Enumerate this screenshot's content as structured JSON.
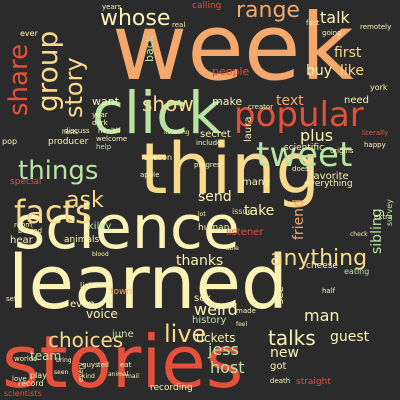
{
  "words": [
    {
      "text": "week",
      "color": "#f5a86b"
    },
    {
      "text": "stories",
      "color": "#e5503b"
    },
    {
      "text": "learned",
      "color": "#fbf3b5"
    },
    {
      "text": "science",
      "color": "#fbf3b5"
    },
    {
      "text": "thing",
      "color": "#f9d98c"
    },
    {
      "text": "click",
      "color": "#b7e3a3"
    },
    {
      "text": "popular",
      "color": "#e5503b"
    },
    {
      "text": "tweet",
      "color": "#b7e3a3"
    },
    {
      "text": "facts",
      "color": "#f9d98c"
    },
    {
      "text": "things",
      "color": "#b7e3a3"
    },
    {
      "text": "share",
      "color": "#e5503b"
    },
    {
      "text": "group",
      "color": "#f9d98c"
    },
    {
      "text": "story",
      "color": "#f9d98c"
    },
    {
      "text": "whose",
      "color": "#fbf3b5"
    },
    {
      "text": "range",
      "color": "#f5a86b"
    },
    {
      "text": "show",
      "color": "#f9d98c"
    },
    {
      "text": "ask",
      "color": "#f9d98c"
    },
    {
      "text": "anything",
      "color": "#f9d98c"
    },
    {
      "text": "choices",
      "color": "#f9d98c"
    },
    {
      "text": "live",
      "color": "#f9d98c"
    },
    {
      "text": "talks",
      "color": "#fbf3b5"
    },
    {
      "text": "talk",
      "color": "#fbf3b5"
    },
    {
      "text": "first",
      "color": "#f9d98c"
    },
    {
      "text": "like",
      "color": "#f9d98c"
    },
    {
      "text": "plus",
      "color": "#fbf3b5"
    },
    {
      "text": "buy",
      "color": "#fbf3b5"
    },
    {
      "text": "text",
      "color": "#f5a86b"
    },
    {
      "text": "friend",
      "color": "#f5a86b"
    },
    {
      "text": "sibling",
      "color": "#b7e3a3"
    },
    {
      "text": "thanks",
      "color": "#fbf3b5"
    },
    {
      "text": "weird",
      "color": "#fbf3b5"
    },
    {
      "text": "jess",
      "color": "#b7e3a3"
    },
    {
      "text": "host",
      "color": "#b7e3a3"
    },
    {
      "text": "man",
      "color": "#fbf3b5"
    },
    {
      "text": "guest",
      "color": "#fbf3b5"
    },
    {
      "text": "send",
      "color": "#fbf3b5"
    },
    {
      "text": "take",
      "color": "#fbf3b5"
    },
    {
      "text": "new",
      "color": "#fbf3b5"
    },
    {
      "text": "got",
      "color": "#fbf3b5"
    },
    {
      "text": "team",
      "color": "#b7e3a3"
    },
    {
      "text": "voice",
      "color": "#fbf3b5"
    },
    {
      "text": "tickets",
      "color": "#fbf3b5"
    },
    {
      "text": "want",
      "color": "#fbf3b5"
    },
    {
      "text": "make",
      "color": "#fbf3b5"
    },
    {
      "text": "people",
      "color": "#e5503b"
    },
    {
      "text": "secret",
      "color": "#fbf3b5"
    },
    {
      "text": "laura",
      "color": "#fbf3b5"
    },
    {
      "text": "favorite",
      "color": "#fbf3b5"
    },
    {
      "text": "many",
      "color": "#fbf3b5"
    },
    {
      "text": "hear",
      "color": "#fbf3b5"
    },
    {
      "text": "listener",
      "color": "#e5503b"
    },
    {
      "text": "see",
      "color": "#fbf3b5"
    },
    {
      "text": "sex",
      "color": "#fbf3b5"
    },
    {
      "text": "history",
      "color": "#b7e3a3"
    },
    {
      "text": "even",
      "color": "#fbf3b5"
    },
    {
      "text": "june",
      "color": "#b7e3a3"
    },
    {
      "text": "need",
      "color": "#fbf3b5"
    },
    {
      "text": "back",
      "color": "#b7e3a3"
    },
    {
      "text": "kiley",
      "color": "#b7e3a3"
    },
    {
      "text": "scientific",
      "color": "#fbf3b5"
    },
    {
      "text": "human",
      "color": "#fbf3b5"
    },
    {
      "text": "cheese",
      "color": "#fbf3b5"
    },
    {
      "text": "everything",
      "color": "#fbf3b5"
    },
    {
      "text": "special",
      "color": "#e5503b"
    },
    {
      "text": "animals",
      "color": "#fbf3b5"
    },
    {
      "text": "town",
      "color": "#f5a86b"
    },
    {
      "text": "eating",
      "color": "#b7e3a3"
    },
    {
      "text": "straight",
      "color": "#e5503b"
    },
    {
      "text": "recording",
      "color": "#fbf3b5"
    },
    {
      "text": "scientists",
      "color": "#e5503b"
    },
    {
      "text": "season",
      "color": "#fbf3b5"
    },
    {
      "text": "producer",
      "color": "#fbf3b5"
    },
    {
      "text": "listen",
      "color": "#fbf3b5"
    },
    {
      "text": "issue",
      "color": "#f9d98c"
    },
    {
      "text": "calling",
      "color": "#e5503b"
    },
    {
      "text": "pop",
      "color": "#fbf3b5"
    },
    {
      "text": "play",
      "color": "#fbf3b5"
    },
    {
      "text": "record",
      "color": "#fbf3b5"
    },
    {
      "text": "ever",
      "color": "#fbf3b5"
    },
    {
      "text": "years",
      "color": "#fbf3b5"
    },
    {
      "text": "york",
      "color": "#fbf3b5"
    },
    {
      "text": "help",
      "color": "#b7e3a3"
    },
    {
      "text": "welcome",
      "color": "#fbf3b5"
    },
    {
      "text": "health",
      "color": "#fbf3b5"
    },
    {
      "text": "dark",
      "color": "#fbf3b5"
    },
    {
      "text": "year",
      "color": "#fbf3b5"
    },
    {
      "text": "extra",
      "color": "#fbf3b5"
    },
    {
      "text": "happy",
      "color": "#fbf3b5"
    },
    {
      "text": "worlds",
      "color": "#fbf3b5"
    },
    {
      "text": "behind",
      "color": "#fbf3b5"
    },
    {
      "text": "room",
      "color": "#fbf3b5"
    },
    {
      "text": "apple",
      "color": "#fbf3b5"
    },
    {
      "text": "discuss",
      "color": "#fbf3b5"
    },
    {
      "text": "include",
      "color": "#fbf3b5"
    },
    {
      "text": "literally",
      "color": "#e5503b"
    },
    {
      "text": "remotely",
      "color": "#fbf3b5"
    },
    {
      "text": "going",
      "color": "#fbf3b5"
    },
    {
      "text": "fact",
      "color": "#fbf3b5"
    },
    {
      "text": "progress",
      "color": "#fbf3b5"
    },
    {
      "text": "origins",
      "color": "#fbf3b5"
    },
    {
      "text": "creator",
      "color": "#fbf3b5"
    },
    {
      "text": "hosts",
      "color": "#fbf3b5"
    },
    {
      "text": "real",
      "color": "#fbf3b5"
    },
    {
      "text": "does",
      "color": "#fbf3b5"
    },
    {
      "text": "love",
      "color": "#fbf3b5"
    },
    {
      "text": "death",
      "color": "#fbf3b5"
    },
    {
      "text": "made",
      "color": "#fbf3b5"
    },
    {
      "text": "half",
      "color": "#fbf3b5"
    },
    {
      "text": "set",
      "color": "#fbf3b5"
    },
    {
      "text": "eat",
      "color": "#fbf3b5"
    },
    {
      "text": "tell",
      "color": "#fbf3b5"
    },
    {
      "text": "guys",
      "color": "#fbf3b5"
    },
    {
      "text": "every",
      "color": "#fbf3b5"
    },
    {
      "text": "survey",
      "color": "#b7e3a3"
    },
    {
      "text": "blood",
      "color": "#fbf3b5"
    },
    {
      "text": "check",
      "color": "#fbf3b5"
    },
    {
      "text": "bring",
      "color": "#fbf3b5"
    },
    {
      "text": "lot",
      "color": "#fbf3b5"
    },
    {
      "text": "feel",
      "color": "#fbf3b5"
    },
    {
      "text": "able",
      "color": "#fbf3b5"
    },
    {
      "text": "seen",
      "color": "#fbf3b5"
    },
    {
      "text": "mail",
      "color": "#fbf3b5"
    },
    {
      "text": "listening",
      "color": "#fbf3b5"
    },
    {
      "text": "animal",
      "color": "#fbf3b5"
    },
    {
      "text": "kind",
      "color": "#fbf3b5"
    }
  ]
}
